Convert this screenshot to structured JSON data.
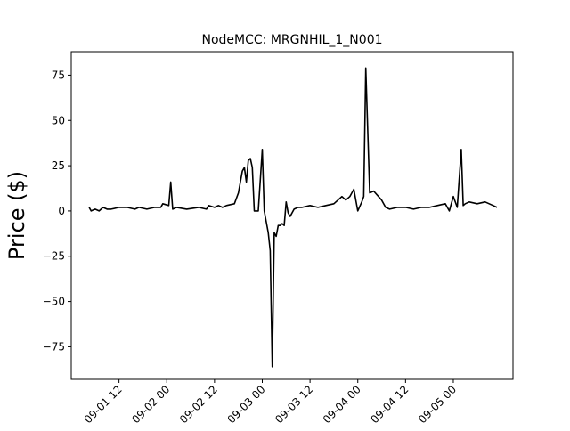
{
  "chart_data": {
    "type": "line",
    "title": "NodeMCC: MRGNHIL_1_N001",
    "xlabel": "",
    "ylabel": "Price ($)",
    "x_is_datetime": true,
    "xlim": [
      "2024-09-01T00:00",
      "2024-09-05T15:00"
    ],
    "ylim": [
      -93,
      88
    ],
    "grid": false,
    "line_color": "#000000",
    "x_ticks": [
      {
        "value": "2024-09-01T12:00",
        "label": "09-01 12"
      },
      {
        "value": "2024-09-02T00:00",
        "label": "09-02 00"
      },
      {
        "value": "2024-09-02T12:00",
        "label": "09-02 12"
      },
      {
        "value": "2024-09-03T00:00",
        "label": "09-03 00"
      },
      {
        "value": "2024-09-03T12:00",
        "label": "09-03 12"
      },
      {
        "value": "2024-09-04T00:00",
        "label": "09-04 00"
      },
      {
        "value": "2024-09-04T12:00",
        "label": "09-04 12"
      },
      {
        "value": "2024-09-05T00:00",
        "label": "09-05 00"
      }
    ],
    "y_ticks": [
      {
        "value": 75,
        "label": "75"
      },
      {
        "value": 50,
        "label": "50"
      },
      {
        "value": 25,
        "label": "25"
      },
      {
        "value": 0,
        "label": "0"
      },
      {
        "value": -25,
        "label": "−25"
      },
      {
        "value": -50,
        "label": "−50"
      },
      {
        "value": -75,
        "label": "−75"
      }
    ],
    "series": [
      {
        "x": [
          "2024-09-01T04:30",
          "2024-09-01T05:00",
          "2024-09-01T06:00",
          "2024-09-01T07:00",
          "2024-09-01T08:00",
          "2024-09-01T09:00",
          "2024-09-01T10:00",
          "2024-09-01T12:00",
          "2024-09-01T14:00",
          "2024-09-01T16:00",
          "2024-09-01T17:00",
          "2024-09-01T19:00",
          "2024-09-01T21:00",
          "2024-09-01T22:30",
          "2024-09-01T23:00",
          "2024-09-02T00:30",
          "2024-09-02T01:00",
          "2024-09-02T01:30",
          "2024-09-02T02:30",
          "2024-09-02T05:00",
          "2024-09-02T08:00",
          "2024-09-02T10:00",
          "2024-09-02T10:30",
          "2024-09-02T12:00",
          "2024-09-02T13:00",
          "2024-09-02T14:00",
          "2024-09-02T15:00",
          "2024-09-02T17:00",
          "2024-09-02T18:00",
          "2024-09-02T19:00",
          "2024-09-02T19:30",
          "2024-09-02T20:00",
          "2024-09-02T20:30",
          "2024-09-02T21:00",
          "2024-09-02T21:30",
          "2024-09-02T22:00",
          "2024-09-02T23:00",
          "2024-09-03T00:00",
          "2024-09-03T00:30",
          "2024-09-03T01:30",
          "2024-09-03T02:00",
          "2024-09-03T02:30",
          "2024-09-03T03:00",
          "2024-09-03T03:30",
          "2024-09-03T04:00",
          "2024-09-03T04:30",
          "2024-09-03T05:00",
          "2024-09-03T05:30",
          "2024-09-03T06:00",
          "2024-09-03T06:30",
          "2024-09-03T07:00",
          "2024-09-03T08:00",
          "2024-09-03T09:00",
          "2024-09-03T10:00",
          "2024-09-03T12:00",
          "2024-09-03T14:00",
          "2024-09-03T16:00",
          "2024-09-03T18:00",
          "2024-09-03T20:00",
          "2024-09-03T21:00",
          "2024-09-03T22:00",
          "2024-09-03T23:00",
          "2024-09-04T00:00",
          "2024-09-04T01:00",
          "2024-09-04T01:30",
          "2024-09-04T02:00",
          "2024-09-04T03:00",
          "2024-09-04T04:00",
          "2024-09-04T06:00",
          "2024-09-04T07:00",
          "2024-09-04T08:00",
          "2024-09-04T10:00",
          "2024-09-04T12:00",
          "2024-09-04T14:00",
          "2024-09-04T16:00",
          "2024-09-04T18:00",
          "2024-09-04T20:00",
          "2024-09-04T22:00",
          "2024-09-04T23:00",
          "2024-09-05T00:00",
          "2024-09-05T01:00",
          "2024-09-05T02:00",
          "2024-09-05T02:30",
          "2024-09-05T03:00",
          "2024-09-05T04:00",
          "2024-09-05T06:00",
          "2024-09-05T08:00",
          "2024-09-05T10:00",
          "2024-09-05T11:00"
        ],
        "y": [
          2,
          0,
          1,
          0,
          2,
          1,
          1,
          2,
          2,
          1,
          2,
          1,
          2,
          2,
          4,
          3,
          16,
          1,
          2,
          1,
          2,
          1,
          3,
          2,
          3,
          2,
          3,
          4,
          10,
          22,
          24,
          16,
          28,
          29,
          24,
          0,
          0,
          34,
          0,
          -12,
          -22,
          -86,
          -12,
          -14,
          -8,
          -8,
          -7,
          -8,
          5,
          -1,
          -3,
          1,
          2,
          2,
          3,
          2,
          3,
          4,
          8,
          6,
          8,
          12,
          0,
          5,
          8,
          79,
          10,
          11,
          6,
          2,
          1,
          2,
          2,
          1,
          2,
          2,
          3,
          4,
          0,
          8,
          2,
          34,
          3,
          4,
          5,
          4,
          5,
          3,
          2
        ]
      }
    ]
  }
}
